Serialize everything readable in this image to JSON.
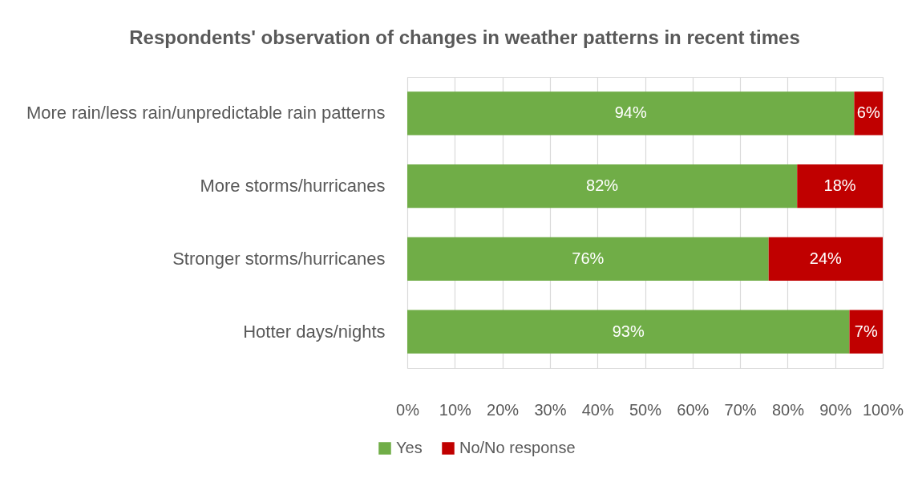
{
  "chart_data": {
    "type": "bar",
    "orientation": "horizontal",
    "stacked": true,
    "title": "Respondents'  observation of changes in weather patterns in recent times",
    "categories": [
      "More rain/less rain/unpredictable rain patterns",
      "More storms/hurricanes",
      "Stronger storms/hurricanes",
      "Hotter days/nights"
    ],
    "series": [
      {
        "name": "Yes",
        "color": "#70ad47",
        "values": [
          94,
          82,
          76,
          93
        ],
        "value_labels": [
          "94%",
          "82%",
          "76%",
          "93%"
        ]
      },
      {
        "name": "No/No response",
        "color": "#c00000",
        "values": [
          6,
          18,
          24,
          7
        ],
        "value_labels": [
          "6%",
          "18%",
          "24%",
          "7%"
        ]
      }
    ],
    "xlim": [
      0,
      100
    ],
    "xticks": [
      {
        "value": 0,
        "label": "0%"
      },
      {
        "value": 10,
        "label": "10%"
      },
      {
        "value": 20,
        "label": "20%"
      },
      {
        "value": 30,
        "label": "30%"
      },
      {
        "value": 40,
        "label": "40%"
      },
      {
        "value": 50,
        "label": "50%"
      },
      {
        "value": 60,
        "label": "60%"
      },
      {
        "value": 70,
        "label": "70%"
      },
      {
        "value": 80,
        "label": "80%"
      },
      {
        "value": 90,
        "label": "90%"
      },
      {
        "value": 100,
        "label": "100%"
      }
    ],
    "grid": "x",
    "legend": "bottom"
  }
}
